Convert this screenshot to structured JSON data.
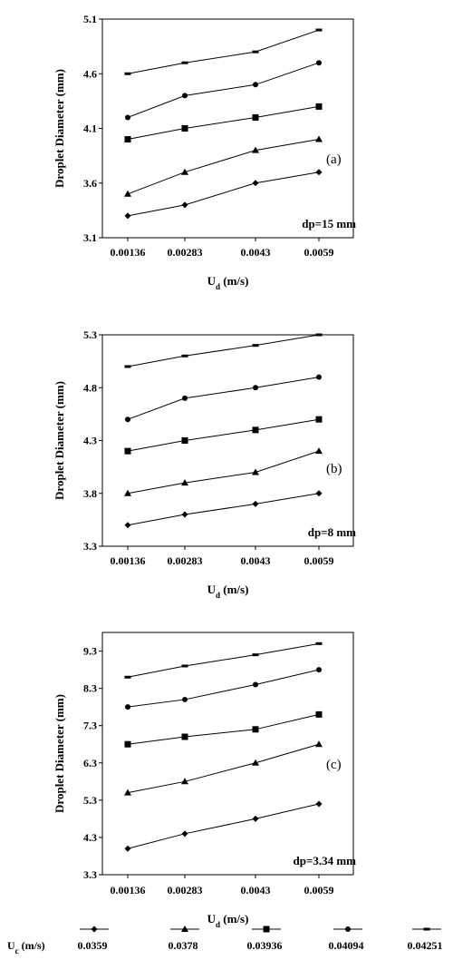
{
  "chart_data": [
    {
      "type": "line",
      "panel_label": "(a)",
      "annotation": "dp=15 mm",
      "xlabel": "U",
      "xlabel_sub": "d",
      "xlabel_unit": " (m/s)",
      "ylabel": "Droplet Diameter (mm)",
      "categories": [
        "0.00136",
        "0.00283",
        "0.0043",
        "0.0059"
      ],
      "ylim": [
        3.1,
        5.1
      ],
      "yticks": [
        "3.1",
        "3.6",
        "4.1",
        "4.6",
        "5.1"
      ],
      "series": [
        {
          "values": [
            3.3,
            3.4,
            3.6,
            3.7
          ],
          "marker": "diamond"
        },
        {
          "values": [
            3.5,
            3.7,
            3.9,
            4.0
          ],
          "marker": "triangle"
        },
        {
          "values": [
            4.0,
            4.1,
            4.2,
            4.3
          ],
          "marker": "square"
        },
        {
          "values": [
            4.2,
            4.4,
            4.5,
            4.7
          ],
          "marker": "circle"
        },
        {
          "values": [
            4.6,
            4.7,
            4.8,
            5.0
          ],
          "marker": "bar"
        }
      ]
    },
    {
      "type": "line",
      "panel_label": "(b)",
      "annotation": "dp=8 mm",
      "xlabel": "U",
      "xlabel_sub": "d",
      "xlabel_unit": " (m/s)",
      "ylabel": "Droplet Diameter (mm)",
      "categories": [
        "0.00136",
        "0.00283",
        "0.0043",
        "0.0059"
      ],
      "ylim": [
        3.3,
        5.3
      ],
      "yticks": [
        "3.3",
        "3.8",
        "4.3",
        "4.8",
        "5.3"
      ],
      "series": [
        {
          "values": [
            3.5,
            3.6,
            3.7,
            3.8
          ],
          "marker": "diamond"
        },
        {
          "values": [
            3.8,
            3.9,
            4.0,
            4.2
          ],
          "marker": "triangle"
        },
        {
          "values": [
            4.2,
            4.3,
            4.4,
            4.5
          ],
          "marker": "square"
        },
        {
          "values": [
            4.5,
            4.7,
            4.8,
            4.9
          ],
          "marker": "circle"
        },
        {
          "values": [
            5.0,
            5.1,
            5.2,
            5.3
          ],
          "marker": "bar"
        }
      ]
    },
    {
      "type": "line",
      "panel_label": "(c)",
      "annotation": "dp=3.34 mm",
      "xlabel": "U",
      "xlabel_sub": "d",
      "xlabel_unit": " (m/s)",
      "ylabel": "Droplet Diameter (mm)",
      "categories": [
        "0.00136",
        "0.00283",
        "0.0043",
        "0.0059"
      ],
      "ylim": [
        3.3,
        9.8
      ],
      "yticks": [
        "3.3",
        "4.3",
        "5.3",
        "6.3",
        "7.3",
        "8.3",
        "9.3"
      ],
      "series": [
        {
          "values": [
            4.0,
            4.4,
            4.8,
            5.2
          ],
          "marker": "diamond"
        },
        {
          "values": [
            5.5,
            5.8,
            6.3,
            6.8
          ],
          "marker": "triangle"
        },
        {
          "values": [
            6.8,
            7.0,
            7.2,
            7.6
          ],
          "marker": "square"
        },
        {
          "values": [
            7.8,
            8.0,
            8.4,
            8.8
          ],
          "marker": "circle"
        },
        {
          "values": [
            8.6,
            8.9,
            9.2,
            9.5
          ],
          "marker": "bar"
        }
      ]
    }
  ],
  "legend": {
    "label_main": "U",
    "label_sub": "c",
    "label_unit": " (m/s)",
    "entries": [
      {
        "value": "0.0359",
        "marker": "diamond"
      },
      {
        "value": "0.0378",
        "marker": "triangle"
      },
      {
        "value": "0.03936",
        "marker": "square"
      },
      {
        "value": "0.04094",
        "marker": "circle"
      },
      {
        "value": "0.04251",
        "marker": "bar"
      }
    ]
  }
}
